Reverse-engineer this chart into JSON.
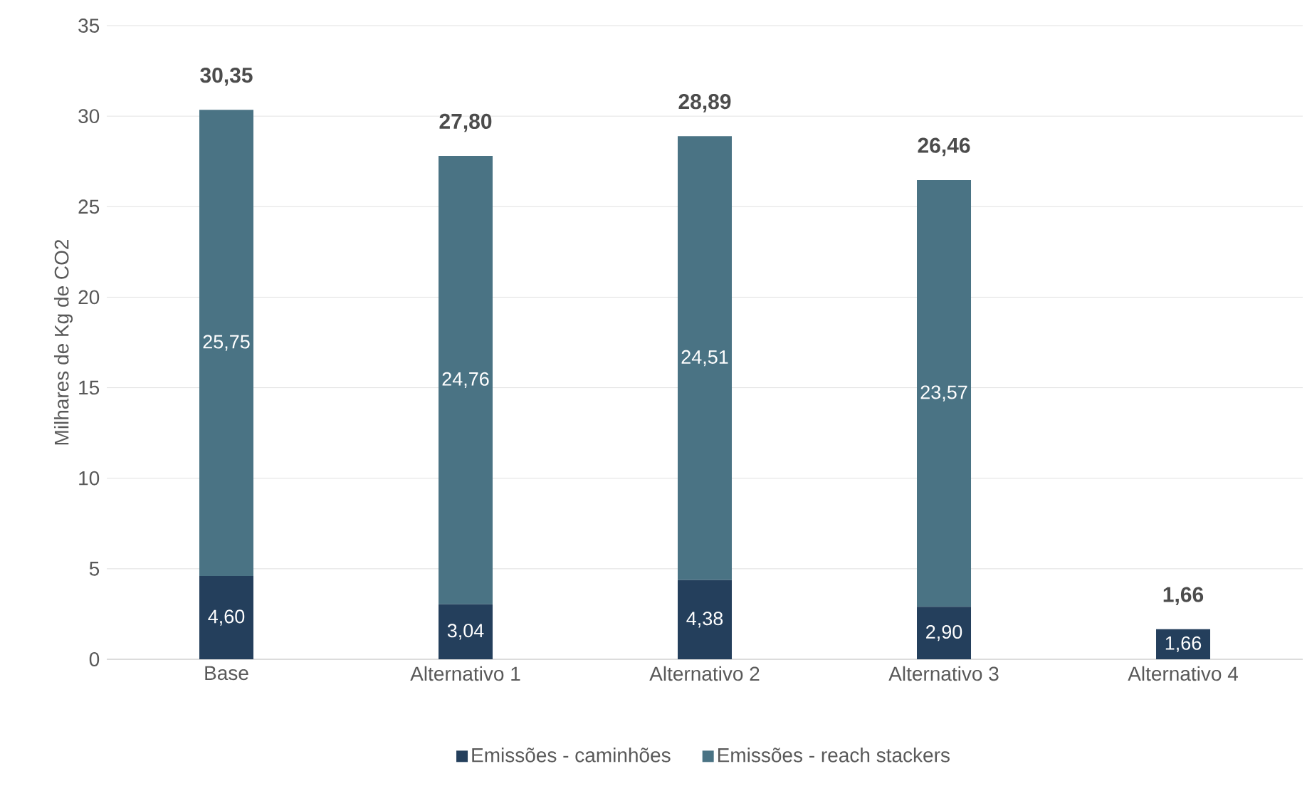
{
  "chart_data": {
    "type": "bar",
    "stacked": true,
    "ylabel": "Milhares de Kg de CO2",
    "categories": [
      "Base",
      "Alternativo 1",
      "Alternativo 2",
      "Alternativo 3",
      "Alternativo 4"
    ],
    "series": [
      {
        "name": "Emissões - caminhões",
        "color": "#243f5c",
        "values": [
          4.6,
          3.04,
          4.38,
          2.9,
          1.66
        ],
        "value_labels": [
          "4,60",
          "3,04",
          "4,38",
          "2,90",
          "1,66"
        ]
      },
      {
        "name": "Emissões - reach stackers",
        "color": "#4a7384",
        "values": [
          25.75,
          24.76,
          24.51,
          23.57,
          null
        ],
        "value_labels": [
          "25,75",
          "24,76",
          "24,51",
          "23,57",
          null
        ]
      }
    ],
    "totals": [
      "30,35",
      "27,80",
      "28,89",
      "26,46",
      "1,66"
    ],
    "ylim": [
      0,
      35
    ],
    "yticks": [
      0,
      5,
      10,
      15,
      20,
      25,
      30,
      35
    ],
    "grid": "y",
    "legend": "bottom"
  }
}
